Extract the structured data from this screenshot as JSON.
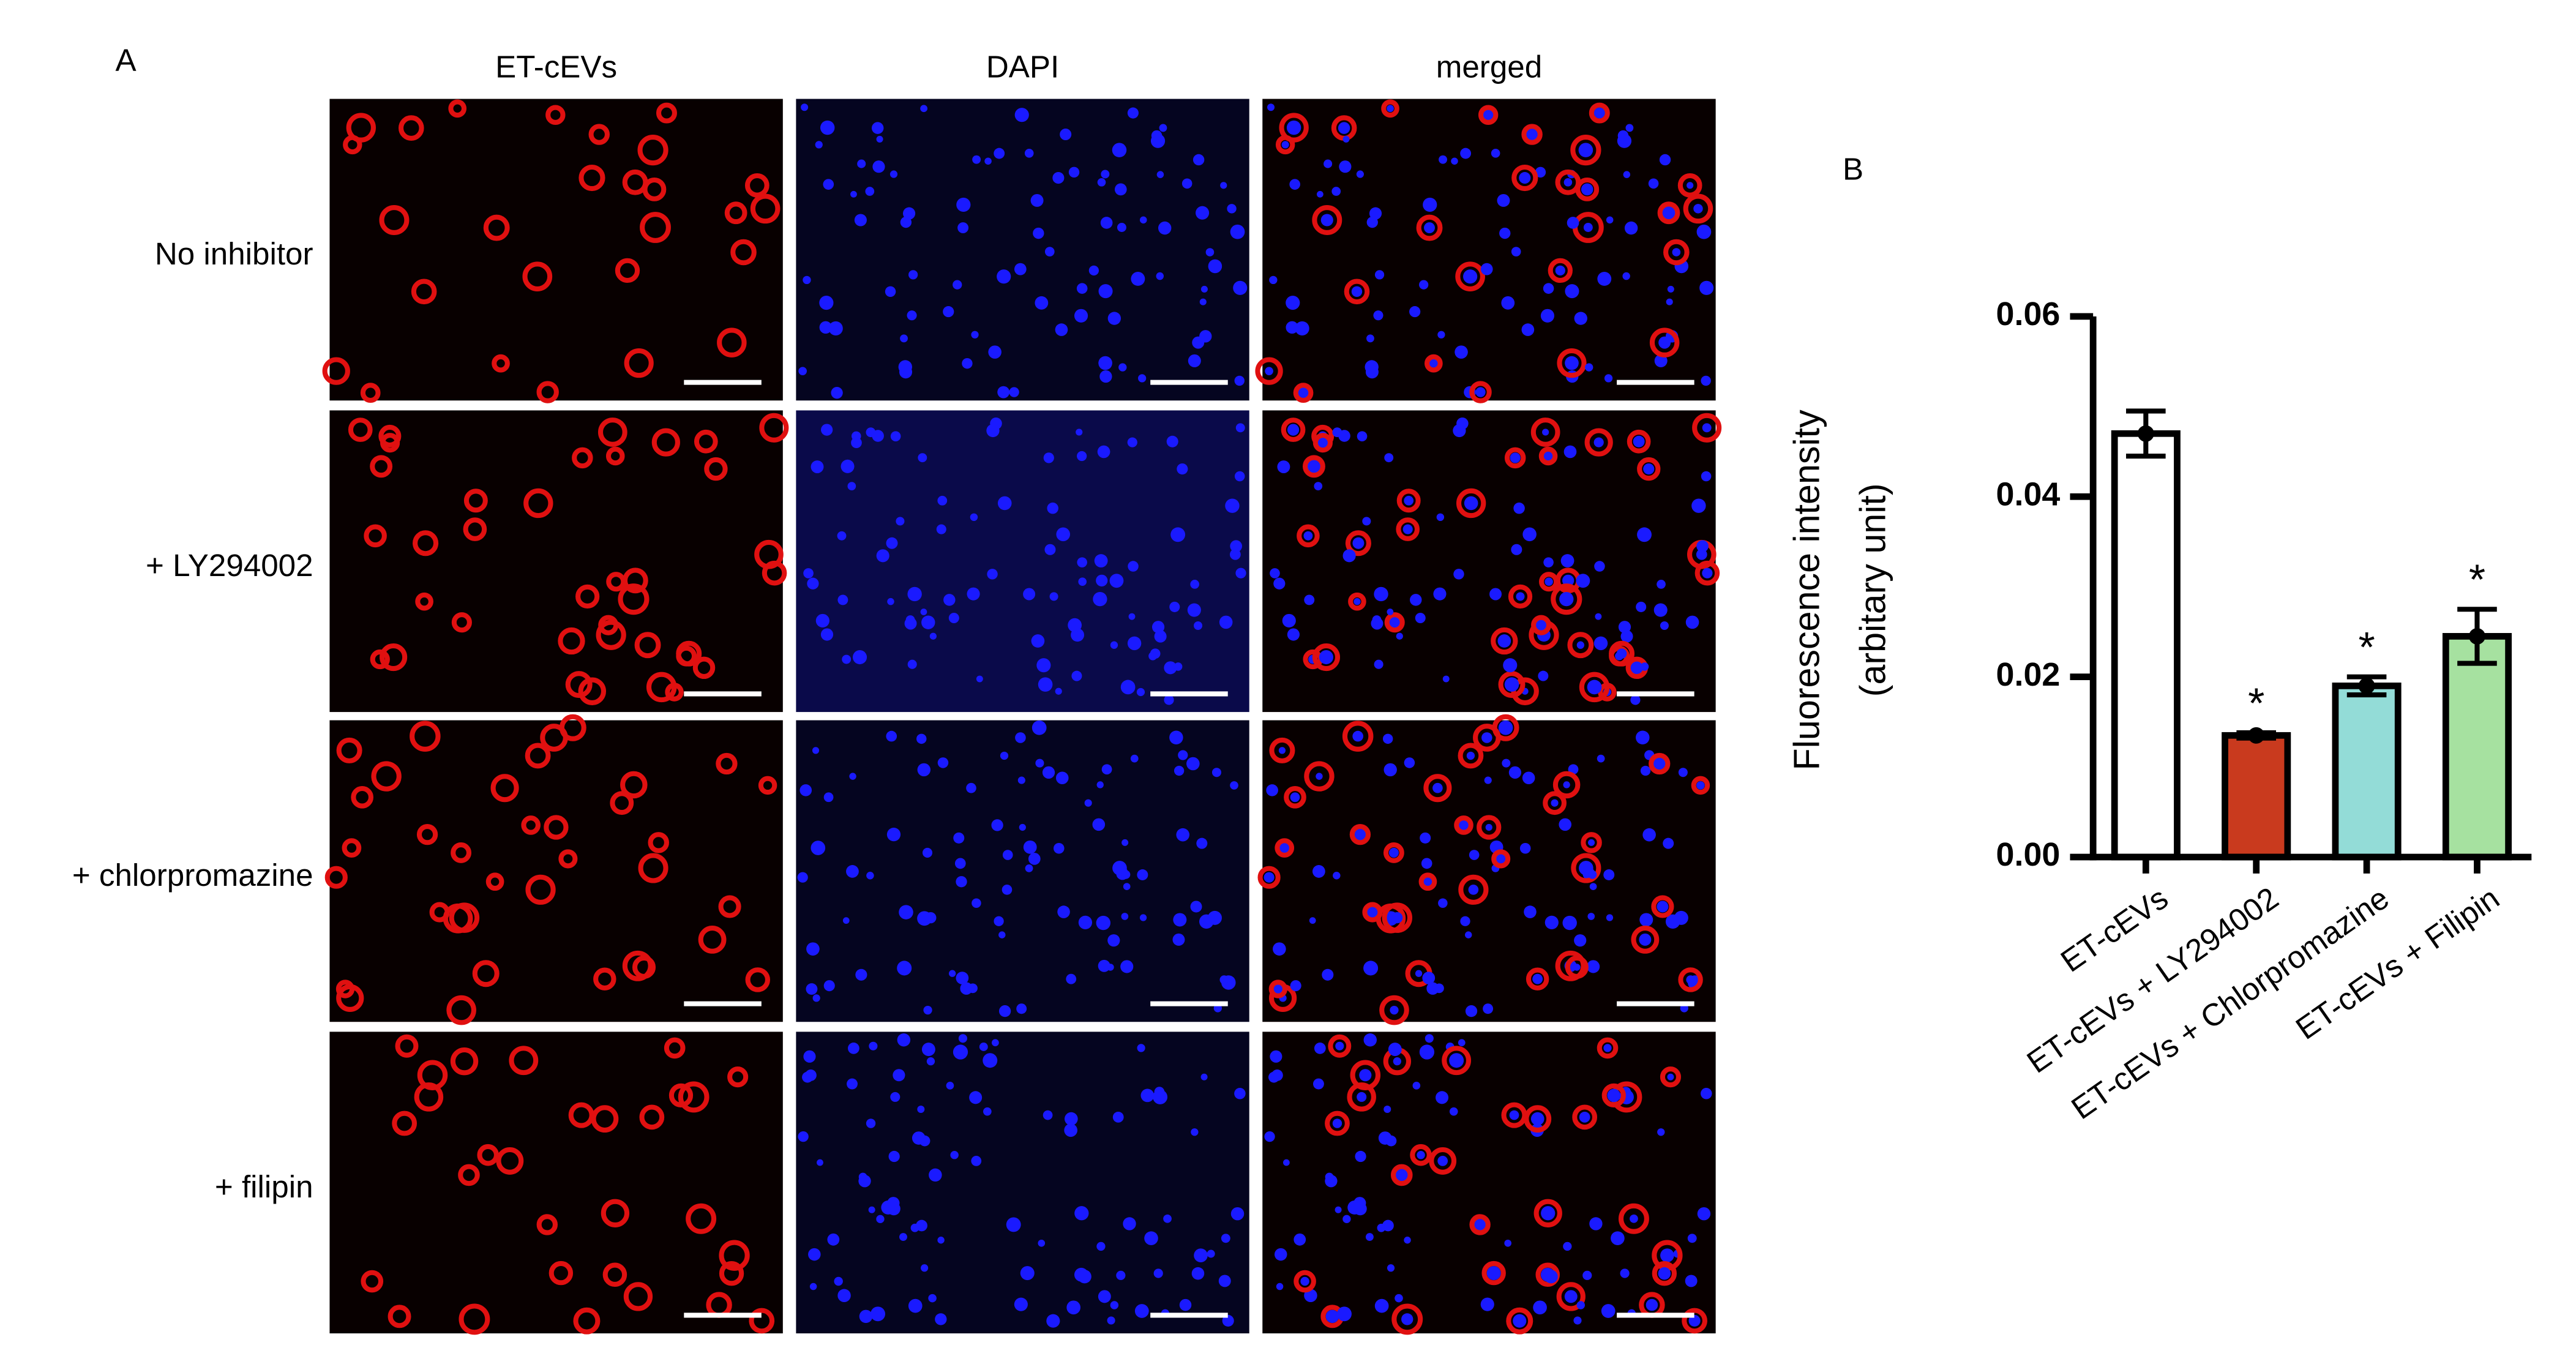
{
  "panel_a": {
    "label": "A",
    "columns": [
      "ET-cEVs",
      "DAPI",
      "merged"
    ],
    "rows": [
      "No inhibitor",
      "+ LY294002",
      "+ chlorpromazine",
      "+ filipin"
    ]
  },
  "chart_data": {
    "type": "bar",
    "panel_label": "B",
    "y_label": [
      "Fluorescence intensity",
      "(arbitary unit)"
    ],
    "categories": [
      "ET-cEVs",
      "ET-cEVs + LY294002",
      "ET-cEVs + Chlorpromazine",
      "ET-cEVs + Filipin"
    ],
    "values": [
      0.047,
      0.0135,
      0.019,
      0.0245
    ],
    "errors": [
      0.0025,
      0.0003,
      0.001,
      0.003
    ],
    "colors": [
      "#ffffff",
      "#c93a1e",
      "#93dcd7",
      "#a6e1a0"
    ],
    "annotations": [
      null,
      "*",
      "*",
      "*"
    ],
    "ylim": [
      0,
      0.06
    ],
    "yticks": [
      {
        "value": 0,
        "label": "0.00"
      },
      {
        "value": 0.02,
        "label": "0.02"
      },
      {
        "value": 0.04,
        "label": "0.04"
      },
      {
        "value": 0.06,
        "label": "0.06"
      }
    ]
  }
}
